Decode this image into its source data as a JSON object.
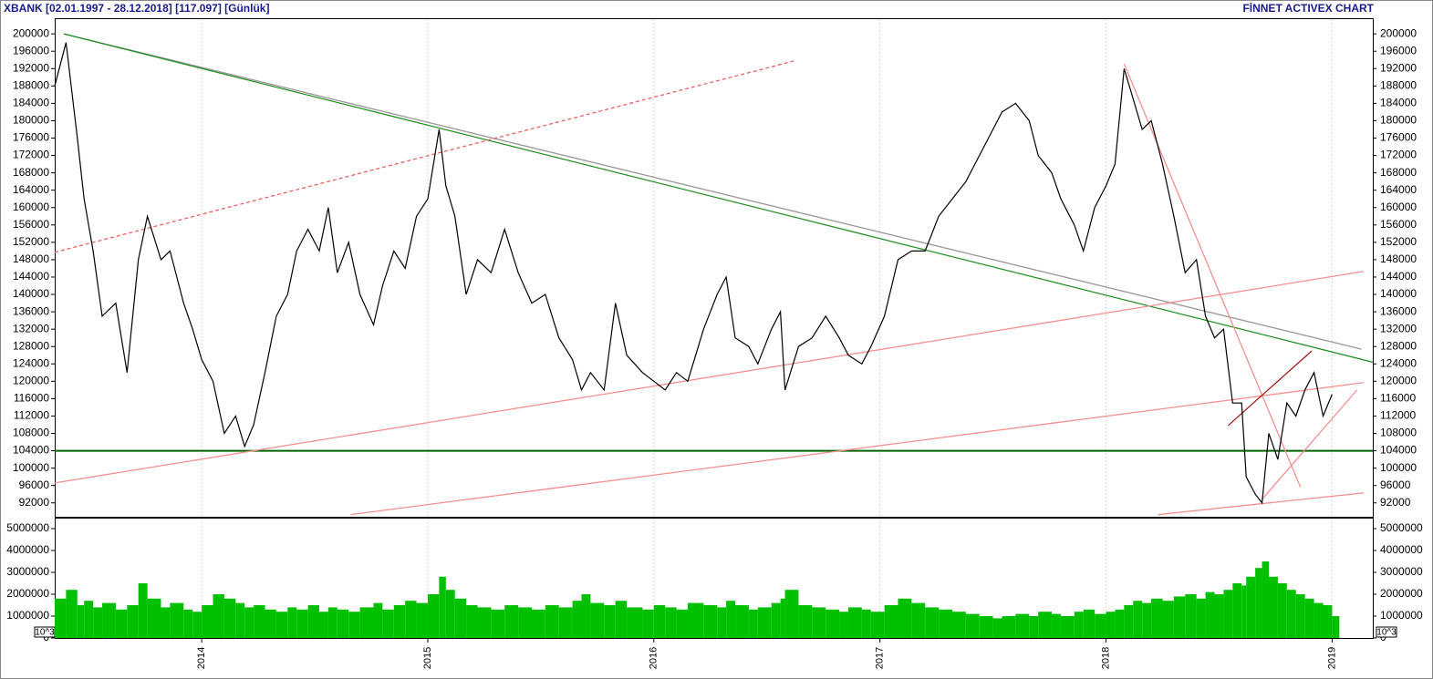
{
  "header": {
    "title": "XBANK  [02.01.1997 - 28.12.2018]  [117.097]  [Günlük]",
    "brand": "FİNNET ACTIVEX CHART"
  },
  "chart_data": [
    {
      "type": "line",
      "color": "#000000",
      "x": [
        2013.35,
        2013.4,
        2013.45,
        2013.48,
        2013.52,
        2013.56,
        2013.62,
        2013.67,
        2013.72,
        2013.76,
        2013.82,
        2013.86,
        2013.92,
        2013.96,
        2014.0,
        2014.05,
        2014.1,
        2014.15,
        2014.19,
        2014.23,
        2014.28,
        2014.33,
        2014.38,
        2014.42,
        2014.47,
        2014.52,
        2014.56,
        2014.6,
        2014.65,
        2014.7,
        2014.76,
        2014.8,
        2014.85,
        2014.9,
        2014.95,
        2015.0,
        2015.05,
        2015.08,
        2015.12,
        2015.17,
        2015.22,
        2015.28,
        2015.34,
        2015.4,
        2015.46,
        2015.52,
        2015.58,
        2015.64,
        2015.68,
        2015.72,
        2015.78,
        2015.83,
        2015.88,
        2015.95,
        2016.0,
        2016.05,
        2016.1,
        2016.15,
        2016.22,
        2016.28,
        2016.32,
        2016.36,
        2016.42,
        2016.46,
        2016.52,
        2016.56,
        2016.58,
        2016.64,
        2016.7,
        2016.76,
        2016.82,
        2016.86,
        2016.92,
        2016.96,
        2017.02,
        2017.08,
        2017.14,
        2017.2,
        2017.26,
        2017.32,
        2017.38,
        2017.44,
        2017.5,
        2017.54,
        2017.6,
        2017.66,
        2017.7,
        2017.76,
        2017.8,
        2017.86,
        2017.9,
        2017.95,
        2018.0,
        2018.04,
        2018.08,
        2018.12,
        2018.16,
        2018.2,
        2018.25,
        2018.3,
        2018.35,
        2018.4,
        2018.44,
        2018.48,
        2018.52,
        2018.56,
        2018.6,
        2018.62,
        2018.66,
        2018.69,
        2018.72,
        2018.76,
        2018.8,
        2018.84,
        2018.88,
        2018.92,
        2018.96,
        2019.0
      ],
      "values": [
        188000,
        198000,
        176000,
        162000,
        150000,
        135000,
        138000,
        122000,
        148000,
        158000,
        148000,
        150000,
        138000,
        132000,
        125000,
        120000,
        108000,
        112000,
        105000,
        110000,
        122000,
        135000,
        140000,
        150000,
        155000,
        150000,
        160000,
        145000,
        152000,
        140000,
        133000,
        142000,
        150000,
        146000,
        158000,
        162000,
        178000,
        165000,
        158000,
        140000,
        148000,
        145000,
        155000,
        145000,
        138000,
        140000,
        130000,
        125000,
        118000,
        122000,
        118000,
        138000,
        126000,
        122000,
        120000,
        118000,
        122000,
        120000,
        132000,
        140000,
        144000,
        130000,
        128000,
        124000,
        132000,
        136000,
        118000,
        128000,
        130000,
        135000,
        130000,
        126000,
        124000,
        128000,
        135000,
        148000,
        150000,
        150000,
        158000,
        162000,
        166000,
        172000,
        178000,
        182000,
        184000,
        180000,
        172000,
        168000,
        162000,
        156000,
        150000,
        160000,
        165000,
        170000,
        192000,
        185000,
        178000,
        180000,
        170000,
        158000,
        145000,
        148000,
        135000,
        130000,
        132000,
        115000,
        115000,
        98000,
        94000,
        92000,
        108000,
        102000,
        115000,
        112000,
        118000,
        122000,
        112000,
        117000
      ],
      "xlim": [
        2013.35,
        2019.18
      ],
      "xticks": [
        2014,
        2015,
        2016,
        2017,
        2018,
        2019
      ],
      "ylim": [
        88800,
        203600
      ],
      "yticks": [
        92000,
        96000,
        100000,
        104000,
        108000,
        112000,
        116000,
        120000,
        124000,
        128000,
        132000,
        136000,
        140000,
        144000,
        148000,
        152000,
        156000,
        160000,
        164000,
        168000,
        172000,
        176000,
        180000,
        184000,
        188000,
        192000,
        196000,
        200000
      ],
      "hlines": [
        {
          "value": 104000,
          "color": "#006400"
        }
      ],
      "trendlines": [
        {
          "x": [
            2013.39,
            2019.13
          ],
          "y": [
            200000,
            127400
          ],
          "color": "#999999"
        },
        {
          "x": [
            2013.39,
            2019.18
          ],
          "y": [
            200000,
            124400
          ],
          "color": "#1f8f1f"
        },
        {
          "x": [
            2013.35,
            2016.63
          ],
          "y": [
            149700,
            193900
          ],
          "color": "#f06060",
          "dashed": true
        },
        {
          "x": [
            2013.35,
            2019.14
          ],
          "y": [
            96600,
            145300
          ],
          "color": "#f59090"
        },
        {
          "x": [
            2014.66,
            2019.14
          ],
          "y": [
            89300,
            119700
          ],
          "color": "#f59090"
        },
        {
          "x": [
            2018.23,
            2019.14
          ],
          "y": [
            89300,
            94300
          ],
          "color": "#f59090"
        },
        {
          "x": [
            2018.08,
            2018.86
          ],
          "y": [
            193100,
            95600
          ],
          "color": "#f59090"
        },
        {
          "x": [
            2018.54,
            2018.91
          ],
          "y": [
            109800,
            127000
          ],
          "color": "#a02020"
        },
        {
          "x": [
            2018.69,
            2019.11
          ],
          "y": [
            92800,
            118000
          ],
          "color": "#f59090"
        }
      ]
    },
    {
      "type": "bar",
      "color": "#00c000",
      "unit_label": "10^3",
      "values": [
        1800000,
        2200000,
        1500000,
        1700000,
        1400000,
        1600000,
        1300000,
        1500000,
        2500000,
        1800000,
        1400000,
        1600000,
        1300000,
        1200000,
        1500000,
        2000000,
        1800000,
        1600000,
        1400000,
        1500000,
        1300000,
        1200000,
        1400000,
        1300000,
        1500000,
        1200000,
        1400000,
        1300000,
        1200000,
        1400000,
        1600000,
        1300000,
        1500000,
        1700000,
        1600000,
        2000000,
        2800000,
        2200000,
        1800000,
        1500000,
        1400000,
        1300000,
        1500000,
        1400000,
        1300000,
        1500000,
        1400000,
        1700000,
        2000000,
        1600000,
        1500000,
        1700000,
        1400000,
        1300000,
        1500000,
        1400000,
        1300000,
        1600000,
        1500000,
        1400000,
        1700000,
        1500000,
        1300000,
        1400000,
        1600000,
        1800000,
        2200000,
        1500000,
        1400000,
        1300000,
        1200000,
        1400000,
        1300000,
        1200000,
        1500000,
        1800000,
        1600000,
        1400000,
        1300000,
        1200000,
        1100000,
        1000000,
        900000,
        1000000,
        1100000,
        1000000,
        1200000,
        1100000,
        1000000,
        1200000,
        1300000,
        1100000,
        1200000,
        1300000,
        1500000,
        1700000,
        1600000,
        1800000,
        1700000,
        1900000,
        2000000,
        1800000,
        2100000,
        2000000,
        2200000,
        2500000,
        2400000,
        2800000,
        3200000,
        3500000,
        2800000,
        2500000,
        2200000,
        2000000,
        1800000,
        1600000,
        1500000,
        1000000
      ],
      "ylim": [
        0,
        5500000
      ],
      "yticks": [
        0,
        1000000,
        2000000,
        3000000,
        4000000,
        5000000
      ]
    }
  ]
}
